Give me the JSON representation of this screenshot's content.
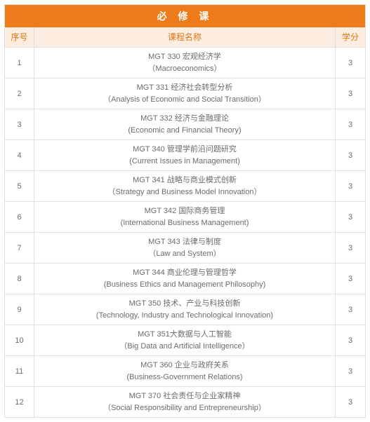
{
  "title": "必 修 课",
  "columns": {
    "index": "序号",
    "name": "课程名称",
    "credit": "学分"
  },
  "colors": {
    "title_bg": "#ee7b1a",
    "header_bg": "#fdece0",
    "header_fg": "#e07712",
    "body_fg": "#6b6b6b",
    "border": "#e0e0e0"
  },
  "layout": {
    "col_index_w": 42,
    "col_credit_w": 42,
    "font_title": 14,
    "font_header": 12,
    "font_body": 11
  },
  "rows": [
    {
      "i": "1",
      "zh": "MGT 330 宏观经济学",
      "en": "（Macroeconomics）",
      "credit": "3"
    },
    {
      "i": "2",
      "zh": "MGT 331 经济社会转型分析",
      "en": "（Analysis of Economic and Social Transition）",
      "credit": "3"
    },
    {
      "i": "3",
      "zh": "MGT 332 经济与金融理论",
      "en": "(Economic  and Financial Theory)",
      "credit": "3"
    },
    {
      "i": "4",
      "zh": "MGT 340 管理学前沿问题研究",
      "en": "(Current  Issues in Management)",
      "credit": "3"
    },
    {
      "i": "5",
      "zh": "MGT 341 战略与商业模式创新",
      "en": "（Strategy and Business Model Innovation）",
      "credit": "3"
    },
    {
      "i": "6",
      "zh": "MGT 342 国际商务管理",
      "en": "(International Business Management)",
      "credit": "3"
    },
    {
      "i": "7",
      "zh": "MGT 343 法律与制度",
      "en": "（Law and System）",
      "credit": "3"
    },
    {
      "i": "8",
      "zh": "MGT 344 商业伦理与管理哲学",
      "en": "(Business Ethics and Management Philosophy)",
      "credit": "3"
    },
    {
      "i": "9",
      "zh": "MGT 350 技术、产业与科技创新",
      "en": "(Technology, Industry and Technological Innovation)",
      "credit": "3"
    },
    {
      "i": "10",
      "zh": "MGT 351大数据与人工智能",
      "en": "（Big Data and Artificial Intelligence）",
      "credit": "3"
    },
    {
      "i": "11",
      "zh": "MGT 360 企业与政府关系",
      "en": "(Business-Government  Relations)",
      "credit": "3"
    },
    {
      "i": "12",
      "zh": "MGT 370 社会责任与企业家精神",
      "en": "（Social Responsibility and Entrepreneurship）",
      "credit": "3"
    }
  ]
}
